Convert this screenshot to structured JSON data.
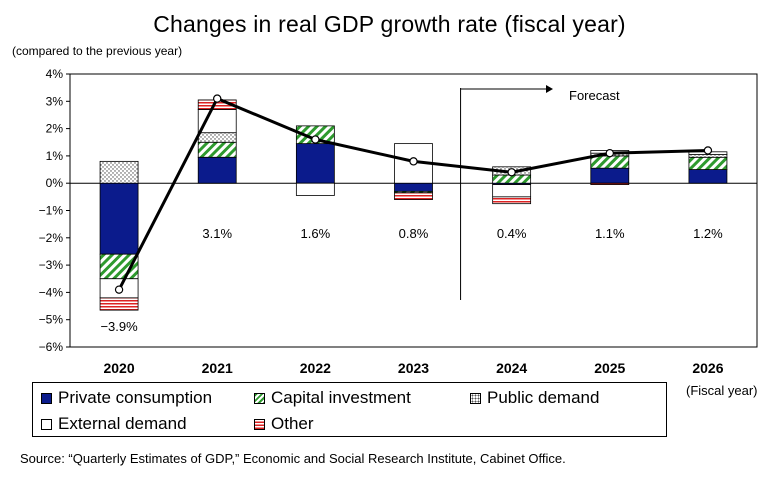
{
  "title": "Changes in real GDP growth rate (fiscal year)",
  "y_axis_note": "(compared to the previous year)",
  "x_axis_note": "(Fiscal year)",
  "source": "Source: “Quarterly Estimates of GDP,” Economic and Social Research Institute, Cabinet Office.",
  "forecast_label": "Forecast",
  "legend": {
    "private": "Private consumption",
    "capital": "Capital investment",
    "public": "Public demand",
    "external": "External demand",
    "other": "Other"
  },
  "colors": {
    "private": "#0b1b8c",
    "capital": "#2e9a2e",
    "public": "#555555",
    "external": "#ffffff",
    "other": "#dd2222",
    "line": "#000000"
  },
  "chart_data": {
    "type": "bar",
    "stacked": true,
    "categories": [
      "2020",
      "2021",
      "2022",
      "2023",
      "2024",
      "2025",
      "2026"
    ],
    "ylim": [
      -6,
      4
    ],
    "yticks": [
      "4%",
      "3%",
      "2%",
      "1%",
      "0%",
      "−1%",
      "−2%",
      "−3%",
      "−4%",
      "−5%",
      "−6%"
    ],
    "ytick_values": [
      4,
      3,
      2,
      1,
      0,
      -1,
      -2,
      -3,
      -4,
      -5,
      -6
    ],
    "forecast_start_index": 4,
    "series": [
      {
        "key": "private",
        "name": "Private consumption",
        "values": [
          -2.6,
          0.95,
          1.45,
          -0.3,
          -0.05,
          0.55,
          0.5
        ]
      },
      {
        "key": "capital",
        "name": "Capital investment",
        "values": [
          -0.9,
          0.55,
          0.65,
          -0.05,
          0.3,
          0.45,
          0.45
        ]
      },
      {
        "key": "public",
        "name": "Public demand",
        "values": [
          0.8,
          0.35,
          0.0,
          0.0,
          0.3,
          0.1,
          0.1
        ]
      },
      {
        "key": "external",
        "name": "External demand",
        "values": [
          -0.7,
          0.85,
          -0.45,
          1.45,
          -0.45,
          0.1,
          0.1
        ]
      },
      {
        "key": "other",
        "name": "Other",
        "values": [
          -0.45,
          0.35,
          0.0,
          -0.25,
          -0.25,
          -0.05,
          0.0
        ]
      }
    ],
    "line": {
      "name": "Real GDP growth rate",
      "values": [
        -3.9,
        3.1,
        1.6,
        0.8,
        0.4,
        1.1,
        1.2
      ],
      "labels": [
        "−3.9%",
        "3.1%",
        "1.6%",
        "0.8%",
        "0.4%",
        "1.1%",
        "1.2%"
      ]
    }
  }
}
